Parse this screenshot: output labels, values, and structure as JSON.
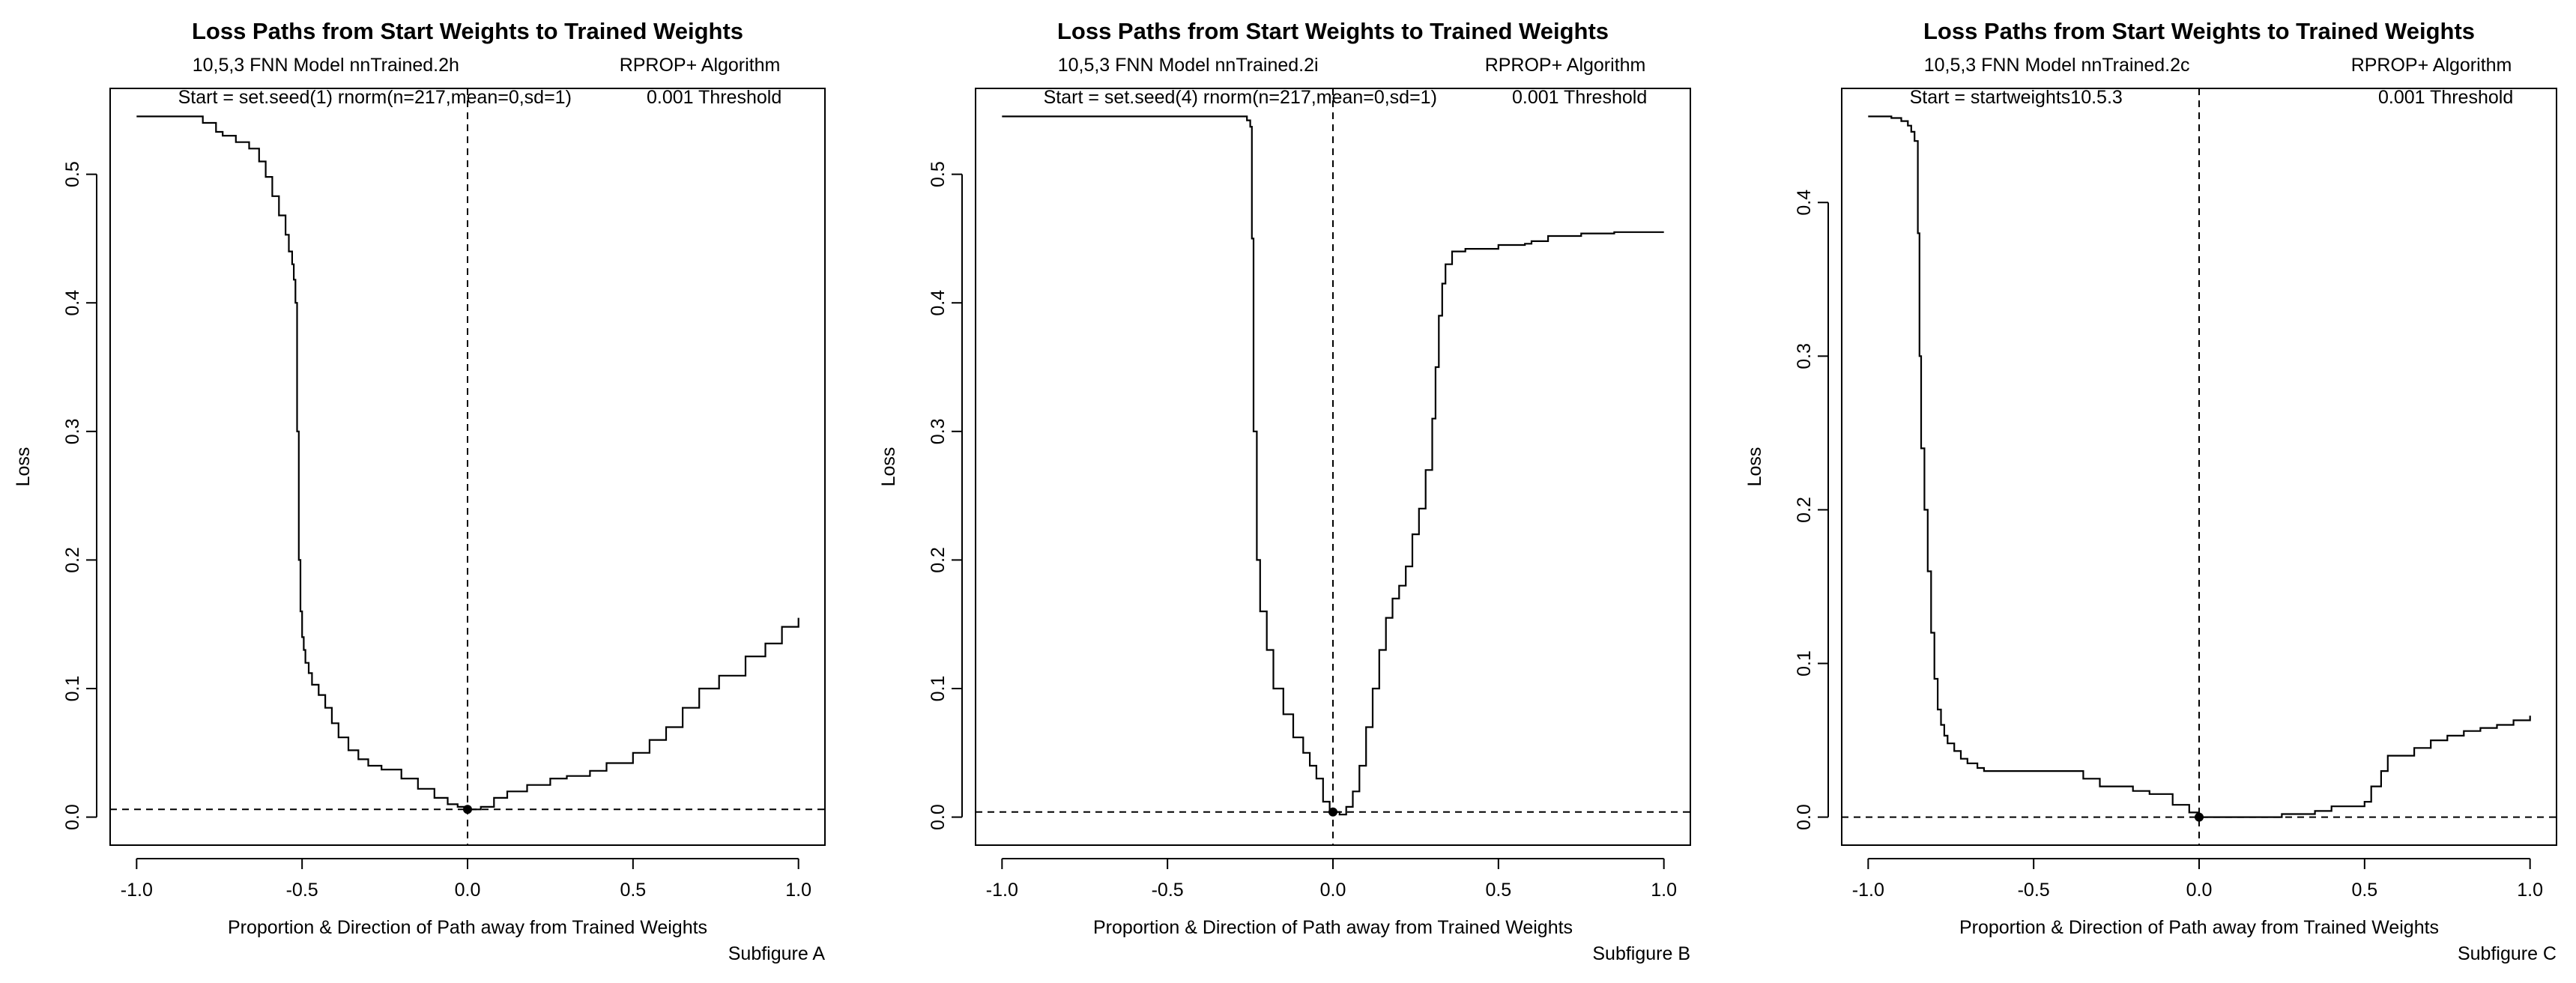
{
  "chart_data": [
    {
      "type": "line",
      "title": "Loss Paths from Start Weights to Trained Weights",
      "subtitle_left_1": "10,5,3 FNN Model  nnTrained.2h",
      "subtitle_right_1": "RPROP+ Algorithm",
      "subtitle_left_2": "Start = set.seed(1) rnorm(n=217,mean=0,sd=1)",
      "subtitle_right_2": "0.001 Threshold",
      "xlabel": "Proportion & Direction of Path away from Trained Weights",
      "ylabel": "Loss",
      "caption": "Subfigure A",
      "xlim": [
        -1.0,
        1.0
      ],
      "ylim": [
        0.0,
        0.545
      ],
      "x_ticks": [
        -1.0,
        -0.5,
        0.0,
        0.5,
        1.0
      ],
      "x_tick_labels": [
        "-1.0",
        "-0.5",
        "0.0",
        "0.5",
        "1.0"
      ],
      "y_ticks": [
        0.0,
        0.1,
        0.2,
        0.3,
        0.4,
        0.5
      ],
      "y_tick_labels": [
        "0.0",
        "0.1",
        "0.2",
        "0.3",
        "0.4",
        "0.5"
      ],
      "hline": 0.006,
      "vline": 0.0,
      "marker": {
        "x": 0.0,
        "y": 0.006
      },
      "grid": false,
      "series": [
        {
          "x": [
            -1.0,
            -0.82,
            -0.8,
            -0.76,
            -0.74,
            -0.7,
            -0.66,
            -0.63,
            -0.61,
            -0.59,
            -0.57,
            -0.55,
            -0.54,
            -0.53,
            -0.525,
            -0.52,
            -0.515,
            -0.51,
            -0.505,
            -0.5,
            -0.495,
            -0.49,
            -0.48,
            -0.47,
            -0.45,
            -0.43,
            -0.41,
            -0.39,
            -0.36,
            -0.33,
            -0.3,
            -0.26,
            -0.2,
            -0.15,
            -0.1,
            -0.06,
            -0.03,
            0.0,
            0.04,
            0.08,
            0.12,
            0.18,
            0.25,
            0.3,
            0.37,
            0.42,
            0.5,
            0.55,
            0.6,
            0.65,
            0.7,
            0.76,
            0.84,
            0.9,
            0.95,
            1.0
          ],
          "y": [
            0.545,
            0.545,
            0.54,
            0.533,
            0.53,
            0.525,
            0.52,
            0.51,
            0.498,
            0.483,
            0.468,
            0.453,
            0.44,
            0.43,
            0.418,
            0.4,
            0.3,
            0.2,
            0.16,
            0.14,
            0.13,
            0.12,
            0.112,
            0.103,
            0.095,
            0.085,
            0.073,
            0.062,
            0.052,
            0.045,
            0.04,
            0.037,
            0.03,
            0.022,
            0.015,
            0.01,
            0.008,
            0.006,
            0.008,
            0.015,
            0.02,
            0.025,
            0.03,
            0.032,
            0.036,
            0.042,
            0.05,
            0.06,
            0.07,
            0.085,
            0.1,
            0.11,
            0.125,
            0.135,
            0.148,
            0.155
          ]
        }
      ]
    },
    {
      "type": "line",
      "title": "Loss Paths from Start Weights to Trained Weights",
      "subtitle_left_1": "10,5,3 FNN Model  nnTrained.2i",
      "subtitle_right_1": "RPROP+ Algorithm",
      "subtitle_left_2": "Start = set.seed(4) rnorm(n=217,mean=0,sd=1)",
      "subtitle_right_2": "0.001 Threshold",
      "xlabel": "Proportion & Direction of Path away from Trained Weights",
      "ylabel": "Loss",
      "caption": "Subfigure B",
      "xlim": [
        -1.0,
        1.0
      ],
      "ylim": [
        0.0,
        0.545
      ],
      "x_ticks": [
        -1.0,
        -0.5,
        0.0,
        0.5,
        1.0
      ],
      "x_tick_labels": [
        "-1.0",
        "-0.5",
        "0.0",
        "0.5",
        "1.0"
      ],
      "y_ticks": [
        0.0,
        0.1,
        0.2,
        0.3,
        0.4,
        0.5
      ],
      "y_tick_labels": [
        "0.0",
        "0.1",
        "0.2",
        "0.3",
        "0.4",
        "0.5"
      ],
      "hline": 0.004,
      "vline": 0.0,
      "marker": {
        "x": 0.0,
        "y": 0.004
      },
      "grid": false,
      "series": [
        {
          "x": [
            -1.0,
            -0.3,
            -0.26,
            -0.25,
            -0.245,
            -0.24,
            -0.23,
            -0.22,
            -0.2,
            -0.18,
            -0.15,
            -0.12,
            -0.09,
            -0.07,
            -0.05,
            -0.03,
            -0.01,
            0.0,
            0.02,
            0.04,
            0.06,
            0.08,
            0.1,
            0.12,
            0.14,
            0.16,
            0.18,
            0.2,
            0.22,
            0.24,
            0.26,
            0.28,
            0.3,
            0.31,
            0.32,
            0.33,
            0.34,
            0.36,
            0.4,
            0.5,
            0.58,
            0.6,
            0.65,
            0.75,
            0.85,
            1.0
          ],
          "y": [
            0.545,
            0.545,
            0.542,
            0.537,
            0.45,
            0.3,
            0.2,
            0.16,
            0.13,
            0.1,
            0.08,
            0.062,
            0.05,
            0.04,
            0.03,
            0.012,
            0.006,
            0.004,
            0.002,
            0.008,
            0.02,
            0.04,
            0.07,
            0.1,
            0.13,
            0.155,
            0.17,
            0.18,
            0.195,
            0.22,
            0.24,
            0.27,
            0.31,
            0.35,
            0.39,
            0.415,
            0.43,
            0.44,
            0.442,
            0.445,
            0.446,
            0.448,
            0.452,
            0.454,
            0.455,
            0.455
          ]
        }
      ]
    },
    {
      "type": "line",
      "title": "Loss Paths from Start Weights to Trained Weights",
      "subtitle_left_1": "10,5,3 FNN Model  nnTrained.2c",
      "subtitle_right_1": "RPROP+ Algorithm",
      "subtitle_left_2": "Start = startweights10.5.3",
      "subtitle_right_2": "0.001 Threshold",
      "xlabel": "Proportion & Direction of Path away from Trained Weights",
      "ylabel": "Loss",
      "caption": "Subfigure C",
      "xlim": [
        -1.0,
        1.0
      ],
      "ylim": [
        0.0,
        0.456
      ],
      "x_ticks": [
        -1.0,
        -0.5,
        0.0,
        0.5,
        1.0
      ],
      "x_tick_labels": [
        "-1.0",
        "-0.5",
        "0.0",
        "0.5",
        "1.0"
      ],
      "y_ticks": [
        0.0,
        0.1,
        0.2,
        0.3,
        0.4
      ],
      "y_tick_labels": [
        "0.0",
        "0.1",
        "0.2",
        "0.3",
        "0.4"
      ],
      "hline": 0.0,
      "vline": 0.0,
      "marker": {
        "x": 0.0,
        "y": 0.0
      },
      "grid": false,
      "series": [
        {
          "x": [
            -1.0,
            -0.93,
            -0.9,
            -0.88,
            -0.87,
            -0.86,
            -0.85,
            -0.845,
            -0.84,
            -0.83,
            -0.82,
            -0.81,
            -0.8,
            -0.79,
            -0.78,
            -0.77,
            -0.76,
            -0.74,
            -0.72,
            -0.7,
            -0.67,
            -0.65,
            -0.6,
            -0.45,
            -0.35,
            -0.33,
            -0.3,
            -0.25,
            -0.2,
            -0.15,
            -0.08,
            -0.03,
            0.0,
            0.1,
            0.2,
            0.25,
            0.35,
            0.4,
            0.5,
            0.52,
            0.55,
            0.57,
            0.6,
            0.65,
            0.7,
            0.75,
            0.8,
            0.85,
            0.9,
            0.95,
            1.0
          ],
          "y": [
            0.456,
            0.455,
            0.453,
            0.45,
            0.446,
            0.44,
            0.38,
            0.3,
            0.24,
            0.2,
            0.16,
            0.12,
            0.09,
            0.07,
            0.06,
            0.053,
            0.048,
            0.043,
            0.038,
            0.035,
            0.032,
            0.03,
            0.03,
            0.03,
            0.025,
            0.025,
            0.02,
            0.02,
            0.017,
            0.015,
            0.008,
            0.003,
            0.0,
            0.0,
            0.0,
            0.002,
            0.004,
            0.007,
            0.01,
            0.02,
            0.03,
            0.04,
            0.04,
            0.045,
            0.05,
            0.053,
            0.056,
            0.058,
            0.06,
            0.063,
            0.066
          ]
        }
      ]
    }
  ]
}
